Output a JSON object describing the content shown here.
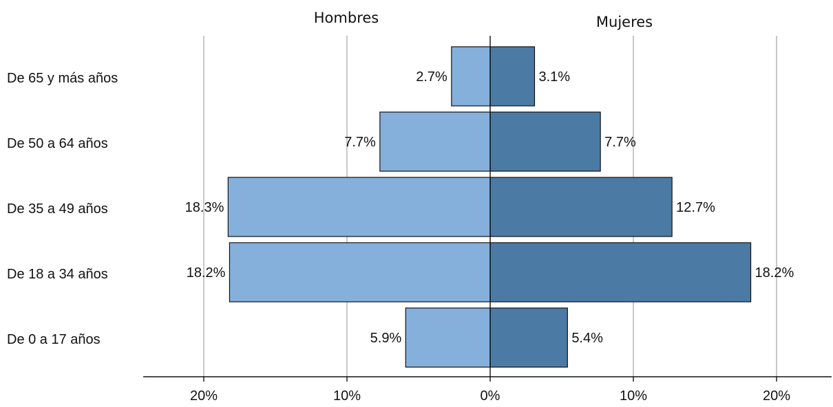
{
  "chart_data": {
    "type": "bar",
    "orientation": "horizontal",
    "layout": "population-pyramid",
    "categories": [
      "De 65 y más años",
      "De 50 a 64 años",
      "De 35 a 49 años",
      "De 18 a 34 años",
      "De 0 a 17 años"
    ],
    "series": [
      {
        "name": "Hombres",
        "side": "left",
        "color": "#85b0dc",
        "values": [
          2.7,
          7.7,
          18.3,
          18.2,
          5.9
        ],
        "labels": [
          "2.7%",
          "7.7%",
          "18.3%",
          "18.2%",
          "5.9%"
        ]
      },
      {
        "name": "Mujeres",
        "side": "right",
        "color": "#4b7aa5",
        "values": [
          3.1,
          7.7,
          12.7,
          18.2,
          5.4
        ],
        "labels": [
          "3.1%",
          "7.7%",
          "12.7%",
          "18.2%",
          "5.4%"
        ]
      }
    ],
    "x_ticks": [
      {
        "value": -20,
        "label": "20%"
      },
      {
        "value": -10,
        "label": "10%"
      },
      {
        "value": 0,
        "label": "0%"
      },
      {
        "value": 10,
        "label": "10%"
      },
      {
        "value": 20,
        "label": "20%"
      }
    ],
    "xlim": [
      -20,
      20
    ],
    "unit": "%",
    "grid": "vertical",
    "legend": "series names printed above each half",
    "gridline_color": "#c8c8c8",
    "bar_border_color": "#111111"
  }
}
